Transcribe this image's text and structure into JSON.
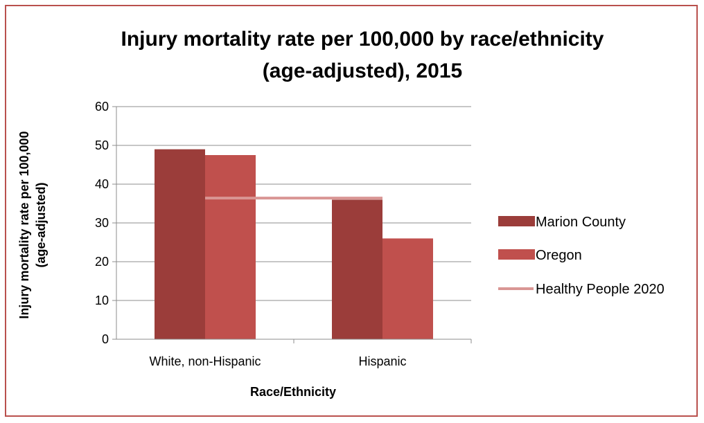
{
  "chart_data": {
    "type": "bar",
    "title_lines": [
      "Injury mortality rate per 100,000 by race/ethnicity",
      "(age-adjusted), 2015"
    ],
    "categories": [
      "White, non-Hispanic",
      "Hispanic"
    ],
    "series": [
      {
        "name": "Marion County",
        "values": [
          49,
          36
        ],
        "color": "#9b3d3a"
      },
      {
        "name": "Oregon",
        "values": [
          47.5,
          26
        ],
        "color": "#c0504d"
      }
    ],
    "reference_line": {
      "name": "Healthy People 2020",
      "value": 36.4,
      "color": "#d99694"
    },
    "xlabel": "Race/Ethnicity",
    "ylabel_lines": [
      "Injury mortality rate per 100,000",
      "(age-adjusted)"
    ],
    "ylim": [
      0,
      60
    ],
    "yticks": [
      "0",
      "10",
      "20",
      "30",
      "40",
      "50",
      "60"
    ],
    "grid": true,
    "legend_position": "right"
  }
}
